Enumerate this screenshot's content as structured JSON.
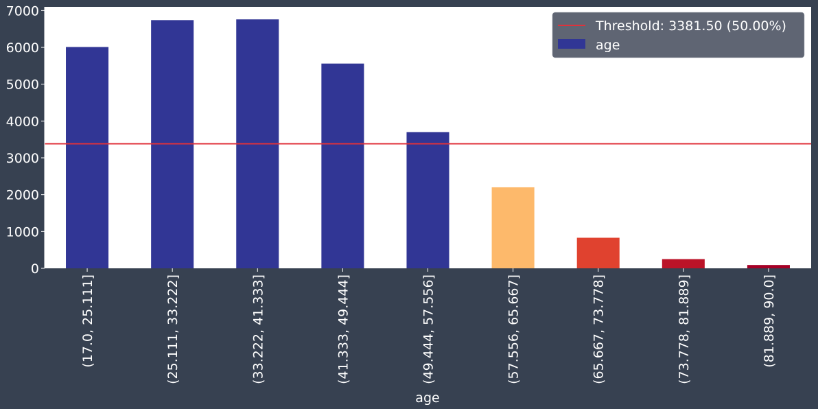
{
  "chart_data": {
    "type": "bar",
    "xlabel": "age",
    "ylabel": "",
    "ylim": [
      0,
      7100
    ],
    "yticks": [
      0,
      1000,
      2000,
      3000,
      4000,
      5000,
      6000,
      7000
    ],
    "categories": [
      "(17.0, 25.111]",
      "(25.111, 33.222]",
      "(33.222, 41.333]",
      "(41.333, 49.444]",
      "(49.444, 57.556]",
      "(57.556, 65.667]",
      "(65.667, 73.778]",
      "(73.778, 81.889]",
      "(81.889, 90.0]"
    ],
    "series": [
      {
        "name": "age",
        "values": [
          6010,
          6740,
          6760,
          5560,
          3700,
          2200,
          830,
          250,
          90
        ],
        "colors": [
          "#313695",
          "#313695",
          "#313695",
          "#313695",
          "#313695",
          "#fdb96b",
          "#e0422f",
          "#bb1328",
          "#a50026"
        ]
      }
    ],
    "threshold": {
      "value": 3381.5,
      "label": "Threshold: 3381.50 (50.00%)",
      "color": "#e0313a"
    },
    "legend": {
      "placement": "top-right",
      "entries": [
        {
          "label": "Threshold: 3381.50 (50.00%)",
          "kind": "line",
          "color": "#e0313a"
        },
        {
          "label": "age",
          "kind": "patch",
          "color": "#313695"
        }
      ]
    },
    "background": "#374151",
    "plot_background": "#ffffff",
    "grid": false
  }
}
